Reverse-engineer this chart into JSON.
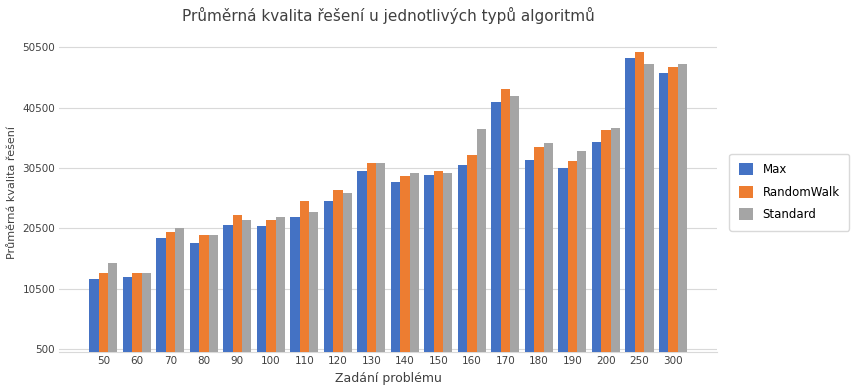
{
  "title": "Průměrná kvalita řešení u jednotlivých typů algoritmů",
  "xlabel": "Zadání problému",
  "ylabel": "Průměrná kvalita řešení",
  "categories": [
    50,
    60,
    70,
    80,
    90,
    100,
    110,
    120,
    130,
    140,
    150,
    160,
    170,
    180,
    190,
    200,
    250,
    300
  ],
  "max_values": [
    12200,
    12500,
    19000,
    18100,
    21100,
    20900,
    22400,
    25000,
    30000,
    28200,
    29300,
    31000,
    41500,
    31800,
    30500,
    34800,
    48700,
    46200
  ],
  "randomwalk_values": [
    13200,
    13100,
    19900,
    19400,
    22700,
    21900,
    25100,
    26900,
    31300,
    29200,
    30000,
    32700,
    43500,
    33900,
    31600,
    36800,
    49700,
    47200
  ],
  "standard_values": [
    14800,
    13200,
    20600,
    19400,
    21900,
    22400,
    23200,
    26400,
    31300,
    29700,
    29700,
    37000,
    42400,
    34700,
    33400,
    37200,
    47700,
    47700
  ],
  "colors": {
    "max": "#4472c4",
    "randomwalk": "#ed7d31",
    "standard": "#a5a5a5"
  },
  "legend_labels": [
    "Max",
    "RandomWalk",
    "Standard"
  ],
  "ylim": [
    0,
    53000
  ],
  "yticks": [
    500,
    10500,
    20500,
    30500,
    40500,
    50500
  ],
  "ytick_labels": [
    "500",
    "10500",
    "20500",
    "30500",
    "40500",
    "50500"
  ],
  "background_color": "#ffffff",
  "grid_color": "#d9d9d9",
  "bar_width": 0.28,
  "figsize": [
    8.56,
    3.92
  ],
  "dpi": 100
}
